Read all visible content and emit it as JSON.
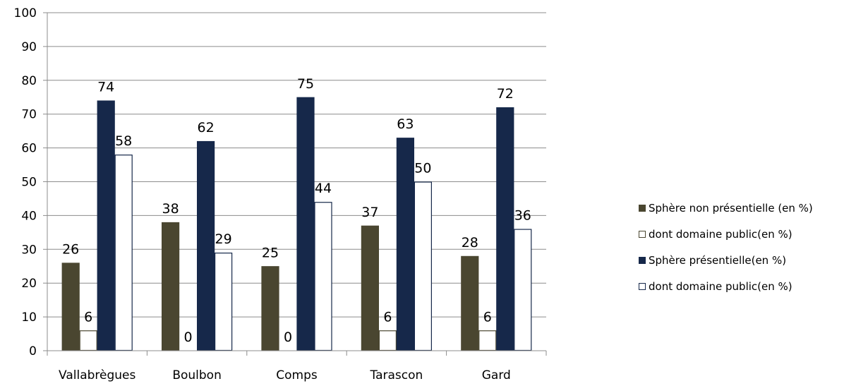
{
  "chart_data": {
    "type": "bar",
    "categories": [
      "Vallabrègues",
      "Boulbon",
      "Comps",
      "Tarascon",
      "Gard"
    ],
    "series": [
      {
        "name": "Sphère non présentielle (en %)",
        "values": [
          26,
          38,
          25,
          37,
          28
        ],
        "labels": [
          "26",
          "38",
          "25",
          "37",
          "28"
        ],
        "color": "#4a4630",
        "stroke": "#4a4630"
      },
      {
        "name": "dont domaine public(en %)",
        "values": [
          6,
          0,
          0,
          6,
          6
        ],
        "labels": [
          "6",
          "0",
          "0",
          "6",
          "6"
        ],
        "color": "#ffffff",
        "stroke": "#4a4630"
      },
      {
        "name": "Sphère présentielle(en %)",
        "values": [
          74,
          62,
          75,
          63,
          72
        ],
        "labels": [
          "74",
          "62",
          "75",
          "63",
          "72"
        ],
        "color": "#16284a",
        "stroke": "#16284a"
      },
      {
        "name": "dont domaine public(en %)",
        "values": [
          58,
          29,
          44,
          50,
          36
        ],
        "labels": [
          "58",
          "29",
          "44",
          "50",
          "36"
        ],
        "color": "#ffffff",
        "stroke": "#16284a"
      }
    ],
    "ylim": [
      0,
      100
    ],
    "yticks": [
      "0",
      "10",
      "20",
      "30",
      "40",
      "50",
      "60",
      "70",
      "80",
      "90",
      "100"
    ],
    "grid": true,
    "legend_position": "right",
    "title": "",
    "xlabel": "",
    "ylabel": ""
  }
}
